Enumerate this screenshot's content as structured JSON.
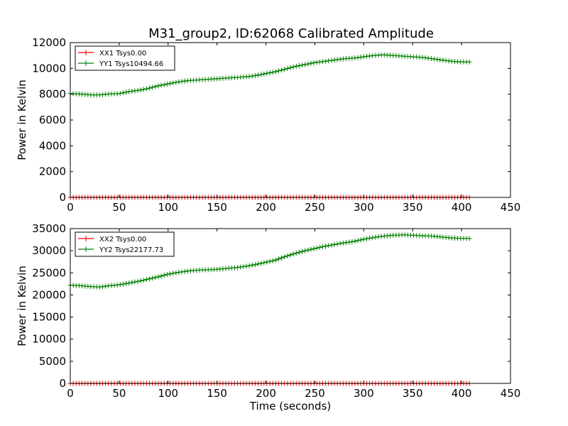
{
  "figure_title": "M31_group2, ID:62068 Calibrated Amplitude",
  "colors": {
    "xx": "#ff0000",
    "yy": "#008000"
  },
  "chart_data": [
    {
      "type": "line",
      "ylabel": "Power in Kelvin",
      "xlim": [
        0,
        450
      ],
      "ylim": [
        0,
        12000
      ],
      "xticks": [
        0,
        50,
        100,
        150,
        200,
        250,
        300,
        350,
        400,
        450
      ],
      "yticks": [
        0,
        2000,
        4000,
        6000,
        8000,
        10000,
        12000
      ],
      "legend_position": "top-left",
      "series": [
        {
          "name": "XX1 Tsys0.00",
          "color": "#ff0000",
          "marker": "+",
          "x": [
            0,
            408
          ],
          "y": [
            0,
            0
          ]
        },
        {
          "name": "YY1 Tsys10494.66",
          "color": "#008000",
          "marker": "+",
          "x": [
            0,
            10,
            20,
            30,
            40,
            50,
            60,
            70,
            80,
            90,
            100,
            110,
            120,
            130,
            140,
            150,
            160,
            170,
            180,
            190,
            200,
            210,
            220,
            230,
            240,
            250,
            260,
            270,
            280,
            290,
            300,
            310,
            320,
            330,
            340,
            350,
            360,
            370,
            380,
            390,
            400,
            408
          ],
          "y": [
            8050,
            8020,
            7950,
            7950,
            8020,
            8050,
            8200,
            8300,
            8450,
            8650,
            8800,
            8950,
            9050,
            9100,
            9150,
            9200,
            9250,
            9300,
            9350,
            9450,
            9600,
            9750,
            9950,
            10150,
            10300,
            10450,
            10550,
            10650,
            10750,
            10800,
            10900,
            11000,
            11050,
            11000,
            10950,
            10900,
            10850,
            10750,
            10650,
            10550,
            10500,
            10494.66
          ]
        }
      ]
    },
    {
      "type": "line",
      "xlabel": "Time (seconds)",
      "ylabel": "Power in Kelvin",
      "xlim": [
        0,
        450
      ],
      "ylim": [
        0,
        35000
      ],
      "xticks": [
        0,
        50,
        100,
        150,
        200,
        250,
        300,
        350,
        400,
        450
      ],
      "yticks": [
        0,
        5000,
        10000,
        15000,
        20000,
        25000,
        30000,
        35000
      ],
      "legend_position": "top-left",
      "series": [
        {
          "name": "XX2 Tsys0.00",
          "color": "#ff0000",
          "marker": "+",
          "x": [
            0,
            408
          ],
          "y": [
            0,
            0
          ]
        },
        {
          "name": "YY2 Tsys22177.73",
          "color": "#008000",
          "marker": "+",
          "x": [
            0,
            10,
            20,
            30,
            40,
            50,
            60,
            70,
            80,
            90,
            100,
            110,
            120,
            130,
            140,
            150,
            160,
            170,
            180,
            190,
            200,
            210,
            220,
            230,
            240,
            250,
            260,
            270,
            280,
            290,
            300,
            310,
            320,
            330,
            340,
            350,
            360,
            370,
            380,
            390,
            400,
            408
          ],
          "y": [
            22200,
            22100,
            21900,
            21800,
            22100,
            22300,
            22700,
            23100,
            23600,
            24100,
            24700,
            25100,
            25400,
            25600,
            25700,
            25800,
            26000,
            26200,
            26500,
            26900,
            27400,
            27900,
            28700,
            29400,
            30000,
            30500,
            31000,
            31400,
            31800,
            32100,
            32600,
            33000,
            33300,
            33500,
            33600,
            33500,
            33400,
            33300,
            33100,
            32900,
            32800,
            32750
          ]
        }
      ]
    }
  ]
}
